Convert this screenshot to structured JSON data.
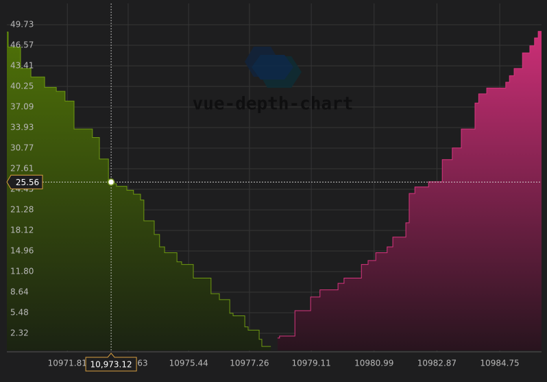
{
  "chart_data": {
    "type": "depth",
    "watermark": "vue-depth-chart",
    "xlim": [
      10970.0,
      10986.0
    ],
    "ylim": [
      0,
      53
    ],
    "grid": true,
    "xticks": [
      10971.81,
      10973.63,
      10975.44,
      10977.26,
      10979.11,
      10980.99,
      10982.87,
      10984.75
    ],
    "yticks": [
      2.32,
      5.48,
      8.64,
      {
        "value": 11.8,
        "label": "11.80"
      },
      14.96,
      18.12,
      21.28,
      24.45,
      27.61,
      30.77,
      33.93,
      37.09,
      40.25,
      43.41,
      46.57,
      49.73
    ],
    "series": [
      {
        "color": "#6f9a12",
        "x": [
          10970.0,
          10970.04,
          10970.41,
          10970.72,
          10971.13,
          10971.48,
          10971.74,
          10972.01,
          10972.56,
          10972.77,
          10973.04,
          10973.28,
          10973.59,
          10973.79,
          10974.0,
          10974.1,
          10974.41,
          10974.57,
          10974.72,
          10975.09,
          10975.23,
          10975.58,
          10976.11,
          10976.36,
          10976.67,
          10976.77,
          10977.12,
          10977.22,
          10977.55,
          10977.63,
          10977.9
        ],
        "values": [
          48.6,
          46.3,
          43.0,
          41.7,
          40.1,
          39.5,
          38.0,
          33.7,
          32.4,
          29.1,
          25.3,
          24.9,
          24.3,
          23.7,
          22.8,
          19.6,
          17.5,
          15.6,
          14.7,
          13.3,
          12.9,
          10.8,
          8.4,
          7.5,
          5.4,
          5.0,
          3.3,
          2.8,
          1.4,
          0.3,
          0.3
        ]
      },
      {
        "color": "#d8357f",
        "x": [
          10978.1,
          10978.16,
          10978.62,
          10979.09,
          10979.37,
          10979.91,
          10980.09,
          10980.61,
          10980.81,
          10981.04,
          10981.38,
          10981.55,
          10981.94,
          10982.04,
          10982.21,
          10982.62,
          10983.03,
          10983.33,
          10983.6,
          10984.01,
          10984.12,
          10984.36,
          10984.93,
          10985.04,
          10985.18,
          10985.43,
          10985.65,
          10985.79,
          10985.9,
          10986.0
        ],
        "values": [
          1.6,
          1.9,
          5.8,
          7.9,
          9.0,
          10.0,
          10.8,
          12.9,
          13.5,
          14.7,
          15.6,
          17.1,
          19.3,
          23.8,
          24.8,
          25.6,
          29.0,
          30.8,
          33.7,
          37.7,
          39.1,
          40.0,
          40.9,
          41.9,
          43.0,
          45.4,
          46.5,
          47.7,
          48.7,
          48.7
        ]
      }
    ],
    "crosshair": {
      "x": 10973.12,
      "y": 25.56,
      "x_label": "10,973.12"
    }
  }
}
